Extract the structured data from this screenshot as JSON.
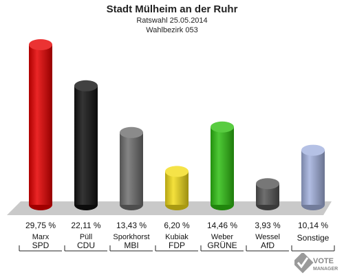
{
  "chart_data": {
    "type": "bar",
    "title": "Stadt Mülheim an der Ruhr",
    "subtitle_1": "Ratswahl 25.05.2014",
    "subtitle_2": "Wahlbezirk 053",
    "categories": [
      "SPD",
      "CDU",
      "MBI",
      "FDP",
      "GRÜNE",
      "AfD",
      "Sonstige"
    ],
    "candidates": [
      "Marx",
      "Püll",
      "Sporkhorst",
      "Kubiak",
      "Weber",
      "Wessel",
      ""
    ],
    "values": [
      29.75,
      22.11,
      13.43,
      6.2,
      14.46,
      3.93,
      10.14
    ],
    "value_labels": [
      "29,75 %",
      "22,11 %",
      "13,43 %",
      "6,20 %",
      "14,46 %",
      "3,93 %",
      "10,14 %"
    ],
    "colors": [
      "#e60000",
      "#111111",
      "#6e6e6e",
      "#f2dc1a",
      "#2fbf12",
      "#555555",
      "#a3b1de"
    ],
    "ylim": [
      0,
      30
    ],
    "grid": false,
    "legend": "none"
  },
  "logo": {
    "line1": "VOTE",
    "line2": "MANAGER"
  }
}
